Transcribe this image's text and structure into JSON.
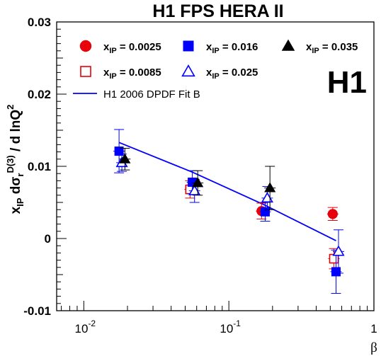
{
  "chart_data": {
    "type": "scatter",
    "title": "H1 FPS HERA II",
    "logo": "H1",
    "xlabel": "β",
    "ylabel": {
      "a": "x",
      "a_sub": "IP",
      "b": " dσ",
      "b_sub": "r",
      "b_sup": "D(3)",
      "c": " / d lnQ",
      "c_sup": "2"
    },
    "x_scale": "log",
    "xlim": [
      0.0065,
      1.0
    ],
    "ylim": [
      -0.01,
      0.03
    ],
    "y_ticks": [
      "-0.01",
      "0",
      "0.01",
      "0.02",
      "0.03"
    ],
    "x_ticks": [
      {
        "base": "10",
        "exp": "-2",
        "v": 0.01
      },
      {
        "base": "10",
        "exp": "-1",
        "v": 0.1
      },
      {
        "base": "1",
        "exp": "",
        "v": 1
      }
    ],
    "series": [
      {
        "name": "x_IP = 0.0025",
        "lab_a": "x",
        "lab_sub": "IP",
        "lab_b": " = 0.0025",
        "marker": "circle",
        "filled": true,
        "color": "#e8000b",
        "points": [
          {
            "x": 0.168,
            "y": 0.0038,
            "err": 0.0011
          },
          {
            "x": 0.52,
            "y": 0.0034,
            "err": 0.0009
          }
        ]
      },
      {
        "name": "x_IP = 0.0085",
        "lab_a": "x",
        "lab_sub": "IP",
        "lab_b": " = 0.0085",
        "marker": "square",
        "filled": false,
        "color": "#e8000b",
        "points": [
          {
            "x": 0.054,
            "y": 0.0068,
            "err": 0.0012
          },
          {
            "x": 0.53,
            "y": -0.0028,
            "err": 0.0014
          }
        ]
      },
      {
        "name": "x_IP = 0.016",
        "lab_a": "x",
        "lab_sub": "IP",
        "lab_b": " = 0.016",
        "marker": "square",
        "filled": true,
        "color": "#0000ff",
        "points": [
          {
            "x": 0.0175,
            "y": 0.0121,
            "err": 0.003
          },
          {
            "x": 0.056,
            "y": 0.0078,
            "err": 0.0016
          },
          {
            "x": 0.178,
            "y": 0.0037,
            "err": 0.0013
          },
          {
            "x": 0.548,
            "y": -0.0046,
            "err": 0.003
          }
        ]
      },
      {
        "name": "x_IP = 0.025",
        "lab_a": "x",
        "lab_sub": "IP",
        "lab_b": " = 0.025",
        "marker": "triangle",
        "filled": false,
        "color": "#0000ff",
        "points": [
          {
            "x": 0.0183,
            "y": 0.0105,
            "err": 0.0012
          },
          {
            "x": 0.058,
            "y": 0.0066,
            "err": 0.0016
          },
          {
            "x": 0.184,
            "y": 0.0056,
            "err": 0.0016
          },
          {
            "x": 0.57,
            "y": -0.0018,
            "err": 0.003
          }
        ]
      },
      {
        "name": "x_IP = 0.035",
        "lab_a": "x",
        "lab_sub": "IP",
        "lab_b": " = 0.035",
        "marker": "triangle",
        "filled": true,
        "color": "#000000",
        "points": [
          {
            "x": 0.0192,
            "y": 0.011,
            "err": 0.0015
          },
          {
            "x": 0.061,
            "y": 0.0077,
            "err": 0.0017
          },
          {
            "x": 0.192,
            "y": 0.007,
            "err": 0.003
          }
        ]
      }
    ],
    "fit": {
      "name": "H1 2006 DPDF Fit B",
      "color": "#0000ff",
      "points": [
        {
          "x": 0.0175,
          "y": 0.0133
        },
        {
          "x": 0.056,
          "y": 0.0092
        },
        {
          "x": 0.178,
          "y": 0.0046
        },
        {
          "x": 0.548,
          "y": -0.0003
        }
      ]
    }
  }
}
